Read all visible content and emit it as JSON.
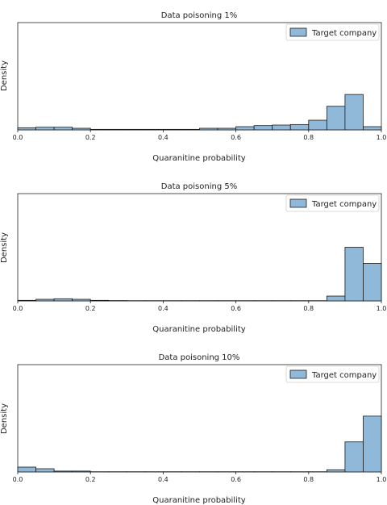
{
  "chart_data": [
    {
      "type": "bar",
      "title": "Data poisoning 1%",
      "xlabel": "Quaranitine probability",
      "ylabel": "Density",
      "xlim": [
        0,
        1.0
      ],
      "ylim": [
        0,
        1.0
      ],
      "xticks": [
        "0.0",
        "0.2",
        "0.4",
        "0.6",
        "0.8",
        "1.0"
      ],
      "legend": {
        "label": "Target company",
        "position": "top-right"
      },
      "color": "#8fb8d9",
      "bin_width": 0.05,
      "series": [
        {
          "name": "Target company",
          "x": [
            0.0,
            0.05,
            0.1,
            0.15,
            0.2,
            0.25,
            0.3,
            0.35,
            0.4,
            0.45,
            0.5,
            0.55,
            0.6,
            0.65,
            0.7,
            0.75,
            0.8,
            0.85,
            0.9,
            0.95
          ],
          "values": [
            0.02,
            0.025,
            0.025,
            0.015,
            0.005,
            0.005,
            0.005,
            0.005,
            0.005,
            0.005,
            0.015,
            0.015,
            0.03,
            0.04,
            0.045,
            0.05,
            0.09,
            0.22,
            0.33,
            0.03
          ]
        }
      ]
    },
    {
      "type": "bar",
      "title": "Data poisoning 5%",
      "xlabel": "Quaranitine probability",
      "ylabel": "Density",
      "xlim": [
        0,
        1.0
      ],
      "ylim": [
        0,
        1.0
      ],
      "xticks": [
        "0.0",
        "0.2",
        "0.4",
        "0.6",
        "0.8",
        "1.0"
      ],
      "legend": {
        "label": "Target company",
        "position": "top-right"
      },
      "color": "#8fb8d9",
      "bin_width": 0.05,
      "series": [
        {
          "name": "Target company",
          "x": [
            0.0,
            0.05,
            0.1,
            0.15,
            0.2,
            0.25,
            0.3,
            0.35,
            0.4,
            0.45,
            0.5,
            0.55,
            0.6,
            0.65,
            0.7,
            0.75,
            0.8,
            0.85,
            0.9,
            0.95
          ],
          "values": [
            0.005,
            0.015,
            0.02,
            0.015,
            0.005,
            0.003,
            0.002,
            0.002,
            0.002,
            0.002,
            0.002,
            0.002,
            0.002,
            0.002,
            0.002,
            0.002,
            0.002,
            0.045,
            0.5,
            0.35
          ]
        }
      ]
    },
    {
      "type": "bar",
      "title": "Data poisoning 10%",
      "xlabel": "Quaranitine probability",
      "ylabel": "Density",
      "xlim": [
        0,
        1.0
      ],
      "ylim": [
        0,
        1.0
      ],
      "xticks": [
        "0.0",
        "0.2",
        "0.4",
        "0.6",
        "0.8",
        "1.0"
      ],
      "legend": {
        "label": "Target company",
        "position": "top-right"
      },
      "color": "#8fb8d9",
      "bin_width": 0.05,
      "series": [
        {
          "name": "Target company",
          "x": [
            0.0,
            0.05,
            0.1,
            0.15,
            0.2,
            0.25,
            0.3,
            0.35,
            0.4,
            0.45,
            0.5,
            0.55,
            0.6,
            0.65,
            0.7,
            0.75,
            0.8,
            0.85,
            0.9,
            0.95
          ],
          "values": [
            0.045,
            0.03,
            0.008,
            0.008,
            0.002,
            0.002,
            0.002,
            0.002,
            0.002,
            0.002,
            0.002,
            0.002,
            0.002,
            0.002,
            0.002,
            0.002,
            0.002,
            0.02,
            0.28,
            0.52
          ]
        }
      ]
    }
  ]
}
